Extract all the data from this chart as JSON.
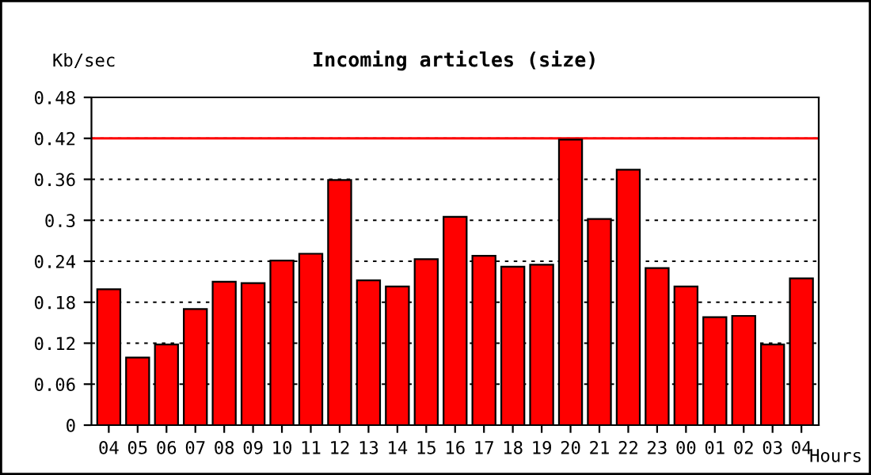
{
  "chart_data": {
    "type": "bar",
    "title": "Incoming articles (size)",
    "xlabel": "Hours",
    "ylabel": "Kb/sec",
    "categories": [
      "04",
      "05",
      "06",
      "07",
      "08",
      "09",
      "10",
      "11",
      "12",
      "13",
      "14",
      "15",
      "16",
      "17",
      "18",
      "19",
      "20",
      "21",
      "22",
      "23",
      "00",
      "01",
      "02",
      "03",
      "04"
    ],
    "series": [
      {
        "color": "#ff0000",
        "values": [
          0.199,
          0.099,
          0.118,
          0.17,
          0.21,
          0.208,
          0.241,
          0.251,
          0.359,
          0.212,
          0.203,
          0.243,
          0.305,
          0.248,
          0.232,
          0.235,
          0.418,
          0.302,
          0.374,
          0.23,
          0.203,
          0.158,
          0.16,
          0.118,
          0.215
        ]
      }
    ],
    "ylim": [
      0,
      0.48
    ],
    "yticks": [
      0,
      0.06,
      0.12,
      0.18,
      0.24,
      0.3,
      0.36,
      0.42,
      0.48
    ],
    "grid": "y",
    "ref_lines": [
      {
        "axis": "y",
        "value": 0.42,
        "color": "#ff0000",
        "line_style": "solid"
      }
    ]
  }
}
